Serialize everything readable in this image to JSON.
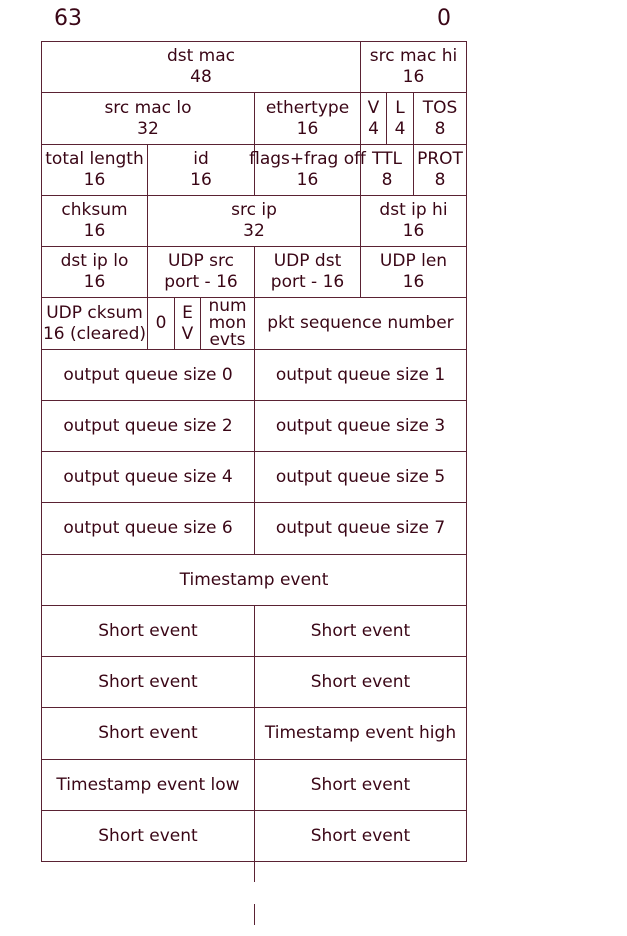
{
  "header": {
    "msb": "63",
    "lsb": "0"
  },
  "colors": {
    "line": "#5a2233",
    "text": "#3a0616"
  },
  "rows": [
    [
      {
        "label": "dst mac",
        "sub": "48",
        "bits": 48
      },
      {
        "label": "src mac hi",
        "sub": "16",
        "bits": 16
      }
    ],
    [
      {
        "label": "src mac lo",
        "sub": "32",
        "bits": 32
      },
      {
        "label": "ethertype",
        "sub": "16",
        "bits": 16
      },
      {
        "label": "V",
        "sub": "4",
        "bits": 4
      },
      {
        "label": "L",
        "sub": "4",
        "bits": 4
      },
      {
        "label": "TOS",
        "sub": "8",
        "bits": 8
      }
    ],
    [
      {
        "label": "total length",
        "sub": "16",
        "bits": 16
      },
      {
        "label": "id",
        "sub": "16",
        "bits": 16
      },
      {
        "label": "flags+frag off",
        "sub": "16",
        "bits": 16
      },
      {
        "label": "TTL",
        "sub": "8",
        "bits": 8
      },
      {
        "label": "PROT",
        "sub": "8",
        "bits": 8
      }
    ],
    [
      {
        "label": "chksum",
        "sub": "16",
        "bits": 16
      },
      {
        "label": "src ip",
        "sub": "32",
        "bits": 32
      },
      {
        "label": "dst ip hi",
        "sub": "16",
        "bits": 16
      }
    ],
    [
      {
        "label": "dst ip lo",
        "sub": "16",
        "bits": 16
      },
      {
        "label": "UDP src",
        "sub": "port - 16",
        "bits": 16
      },
      {
        "label": "UDP dst",
        "sub": "port - 16",
        "bits": 16
      },
      {
        "label": "UDP len",
        "sub": "16",
        "bits": 16
      }
    ],
    [
      {
        "label": "UDP cksum",
        "sub": "16 (cleared)",
        "bits": 16
      },
      {
        "label": "0",
        "sub": "",
        "bits": 4
      },
      {
        "label": "E",
        "sub": "V",
        "bits": 4
      },
      {
        "label": "num",
        "sub": "mon",
        "sub2": "evts",
        "bits": 8
      },
      {
        "label": "pkt sequence number",
        "sub": "",
        "bits": 32
      }
    ],
    [
      {
        "label": "output queue size 0",
        "bits": 32
      },
      {
        "label": "output queue size 1",
        "bits": 32
      }
    ],
    [
      {
        "label": "output queue size 2",
        "bits": 32
      },
      {
        "label": "output queue size 3",
        "bits": 32
      }
    ],
    [
      {
        "label": "output queue size 4",
        "bits": 32
      },
      {
        "label": "output queue size 5",
        "bits": 32
      }
    ],
    [
      {
        "label": "output queue size 6",
        "bits": 32
      },
      {
        "label": "output queue size 7",
        "bits": 32
      }
    ],
    [
      {
        "label": "Timestamp event",
        "bits": 64
      }
    ],
    [
      {
        "label": "Short event",
        "bits": 32
      },
      {
        "label": "Short event",
        "bits": 32
      }
    ],
    [
      {
        "label": "Short event",
        "bits": 32
      },
      {
        "label": "Short event",
        "bits": 32
      }
    ],
    [
      {
        "label": "Short event",
        "bits": 32
      },
      {
        "label": "Timestamp event high",
        "bits": 32
      }
    ],
    [
      {
        "label": "Timestamp event low",
        "bits": 32
      },
      {
        "label": "Short event",
        "bits": 32
      }
    ],
    [
      {
        "label": "Short event",
        "bits": 32
      },
      {
        "label": "Short event",
        "bits": 32
      }
    ]
  ]
}
